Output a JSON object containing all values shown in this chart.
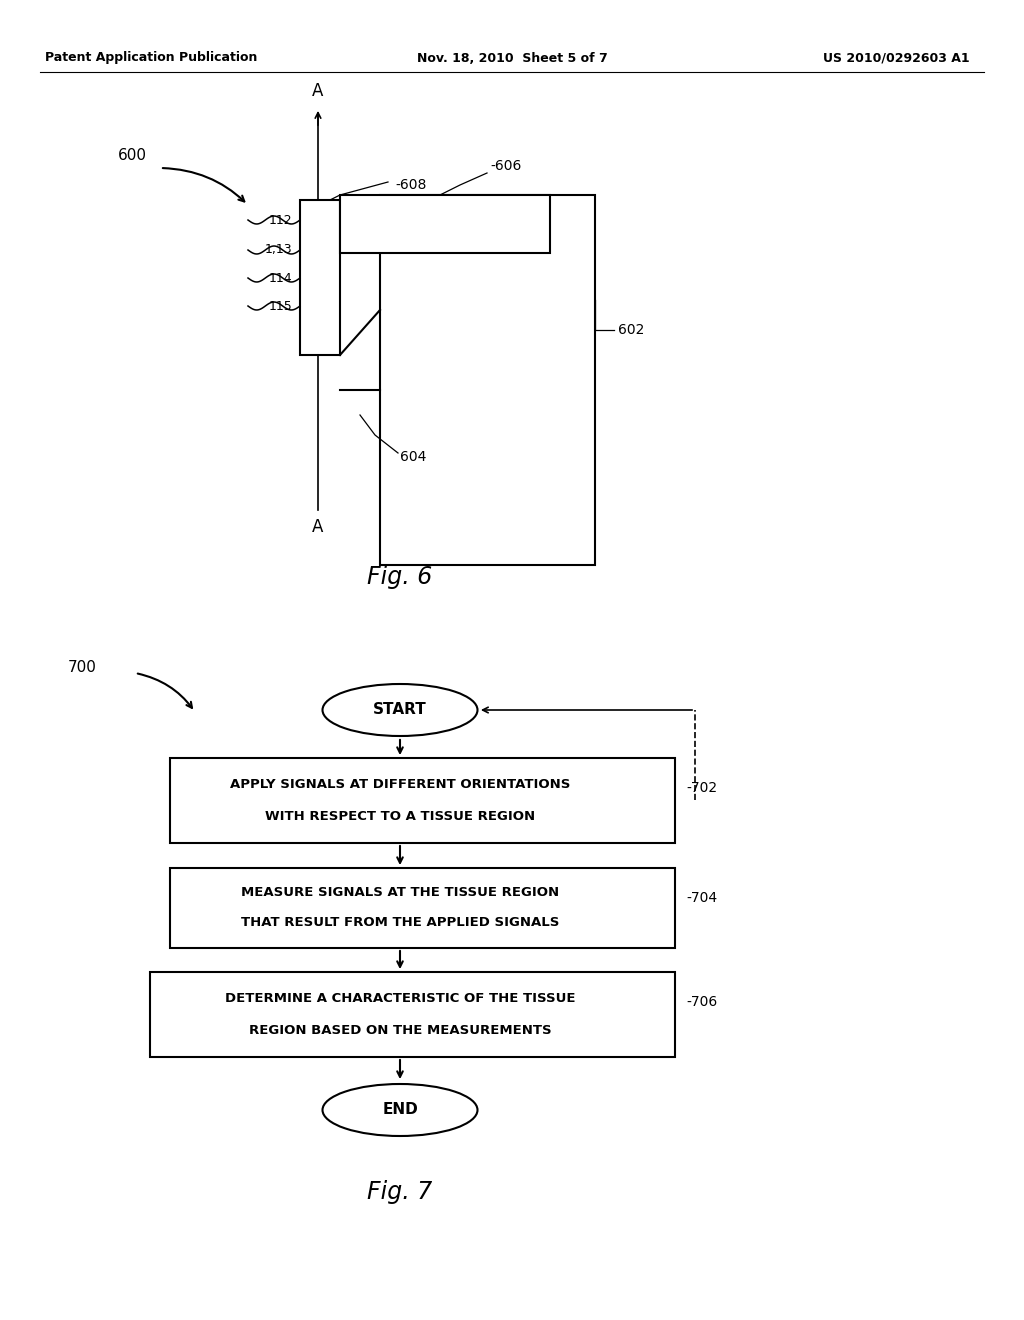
{
  "background_color": "#ffffff",
  "header_left": "Patent Application Publication",
  "header_center": "Nov. 18, 2010  Sheet 5 of 7",
  "header_right": "US 2010/0292603 A1",
  "fig6_label": "Fig. 6",
  "fig7_label": "Fig. 7",
  "label_600": "600",
  "label_700": "700",
  "label_608": "-608",
  "label_606": "-606",
  "label_602": "602",
  "label_604": "604",
  "label_702": "-702",
  "label_704": "-704",
  "label_706": "-706",
  "wire_labels": [
    "112",
    "1,13",
    "114",
    "115"
  ],
  "axis_label": "A",
  "start_text": "START",
  "end_text": "END",
  "box1_line1": "APPLY SIGNALS AT DIFFERENT ORIENTATIONS",
  "box1_line2": "WITH RESPECT TO A TISSUE REGION",
  "box2_line1": "MEASURE SIGNALS AT THE TISSUE REGION",
  "box2_line2": "THAT RESULT FROM THE APPLIED SIGNALS",
  "box3_line1": "DETERMINE A CHARACTERISTIC OF THE TISSUE",
  "box3_line2": "REGION BASED ON THE MEASUREMENTS"
}
